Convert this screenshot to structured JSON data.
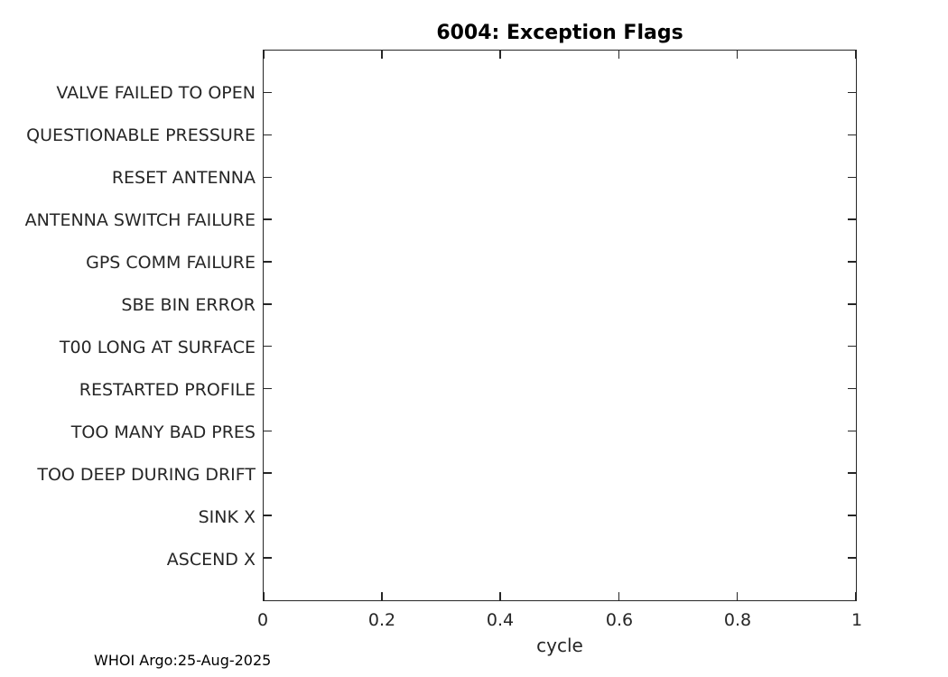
{
  "figure": {
    "title": "6004: Exception Flags",
    "footer": "WHOI Argo:25-Aug-2025"
  },
  "chart_data": {
    "type": "scatter",
    "title": "6004: Exception Flags",
    "xlabel": "cycle",
    "ylabel": "",
    "categories": [
      "VALVE FAILED TO OPEN",
      "QUESTIONABLE PRESSURE",
      "RESET ANTENNA",
      "ANTENNA SWITCH FAILURE",
      "GPS COMM FAILURE",
      "SBE BIN ERROR",
      "T00 LONG AT SURFACE",
      "RESTARTED PROFILE",
      "TOO MANY BAD PRES",
      "TOO DEEP DURING DRIFT",
      "SINK X",
      "ASCEND X"
    ],
    "x_ticks": [
      "0",
      "0.2",
      "0.4",
      "0.6",
      "0.8",
      "1"
    ],
    "xlim": [
      0,
      1
    ],
    "series": [],
    "points": [],
    "grid": false,
    "legend": null,
    "box": true,
    "tick_direction": "in",
    "annotations": [
      "WHOI Argo:25-Aug-2025"
    ]
  },
  "colors": {
    "axis": "#262626",
    "title": "#000000",
    "background": "#ffffff"
  }
}
